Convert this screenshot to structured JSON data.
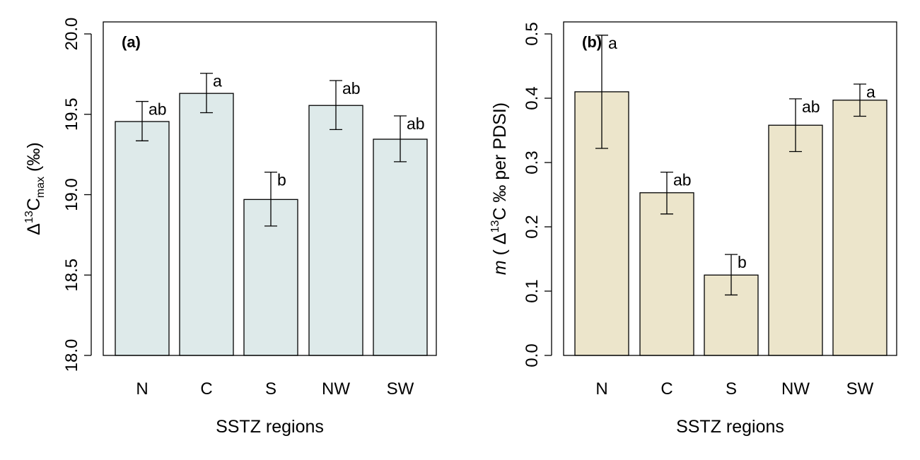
{
  "chart_data": [
    {
      "type": "bar",
      "panel_label": "(a)",
      "categories": [
        "N",
        "C",
        "S",
        "NW",
        "SW"
      ],
      "values": [
        19.455,
        19.63,
        18.97,
        19.555,
        19.345
      ],
      "error_low": [
        19.335,
        19.51,
        18.805,
        19.405,
        19.205
      ],
      "error_high": [
        19.58,
        19.755,
        19.14,
        19.71,
        19.49
      ],
      "significance": [
        "ab",
        "a",
        "b",
        "ab",
        "ab"
      ],
      "ylim": [
        18.0,
        20.0
      ],
      "yticks": [
        18.0,
        18.5,
        19.0,
        19.5,
        20.0
      ],
      "ytick_labels": [
        "18.0",
        "18.5",
        "19.0",
        "19.5",
        "20.0"
      ],
      "xlabel": "SSTZ regions",
      "ylabel": {
        "delta": "Δ",
        "sup": "13",
        "main": "C",
        "sub": "max",
        "unit": " (‰)"
      },
      "bar_color": "#deeaea"
    },
    {
      "type": "bar",
      "panel_label": "(b)",
      "categories": [
        "N",
        "C",
        "S",
        "NW",
        "SW"
      ],
      "values": [
        0.41,
        0.253,
        0.125,
        0.358,
        0.397
      ],
      "error_low": [
        0.322,
        0.22,
        0.094,
        0.317,
        0.372
      ],
      "error_high": [
        0.498,
        0.285,
        0.157,
        0.399,
        0.422
      ],
      "significance": [
        "a",
        "ab",
        "b",
        "ab",
        "a"
      ],
      "ylim": [
        0.0,
        0.5
      ],
      "yticks": [
        0.0,
        0.1,
        0.2,
        0.3,
        0.4,
        0.5
      ],
      "ytick_labels": [
        "0.0",
        "0.1",
        "0.2",
        "0.3",
        "0.4",
        "0.5"
      ],
      "xlabel": "SSTZ regions",
      "ylabel": {
        "m": "m",
        "open": " ( Δ",
        "sup": "13",
        "rest": "C ‰ per PDSI)"
      },
      "bar_color": "#ece5cb"
    }
  ]
}
